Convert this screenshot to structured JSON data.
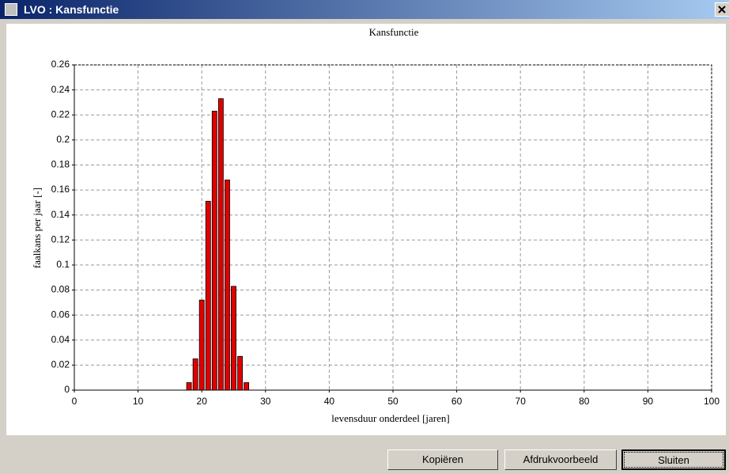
{
  "window": {
    "title": "LVO : Kansfunctie"
  },
  "buttons": [
    "Kopiëren",
    "Afdrukvoorbeeld",
    "Sluiten"
  ],
  "chart_data": {
    "type": "bar",
    "title": "Kansfunctie",
    "x_label": "levensduur onderdeel [jaren]",
    "y_label": "faalkans per jaar [-]",
    "x": [
      18,
      19,
      20,
      21,
      22,
      23,
      24,
      25,
      26,
      27
    ],
    "values": [
      0.006,
      0.025,
      0.072,
      0.151,
      0.223,
      0.233,
      0.168,
      0.083,
      0.027,
      0.006
    ],
    "color": "#e00000",
    "xlim": [
      0,
      100
    ],
    "xticks": [
      0,
      10,
      20,
      30,
      40,
      50,
      60,
      70,
      80,
      90,
      100
    ],
    "ylim": [
      0,
      0.26
    ],
    "yticks": [
      0,
      0.02,
      0.04,
      0.06,
      0.08,
      0.1,
      0.12,
      0.14,
      0.16,
      0.18,
      0.2,
      0.22,
      0.24,
      0.26
    ],
    "grid": true
  }
}
